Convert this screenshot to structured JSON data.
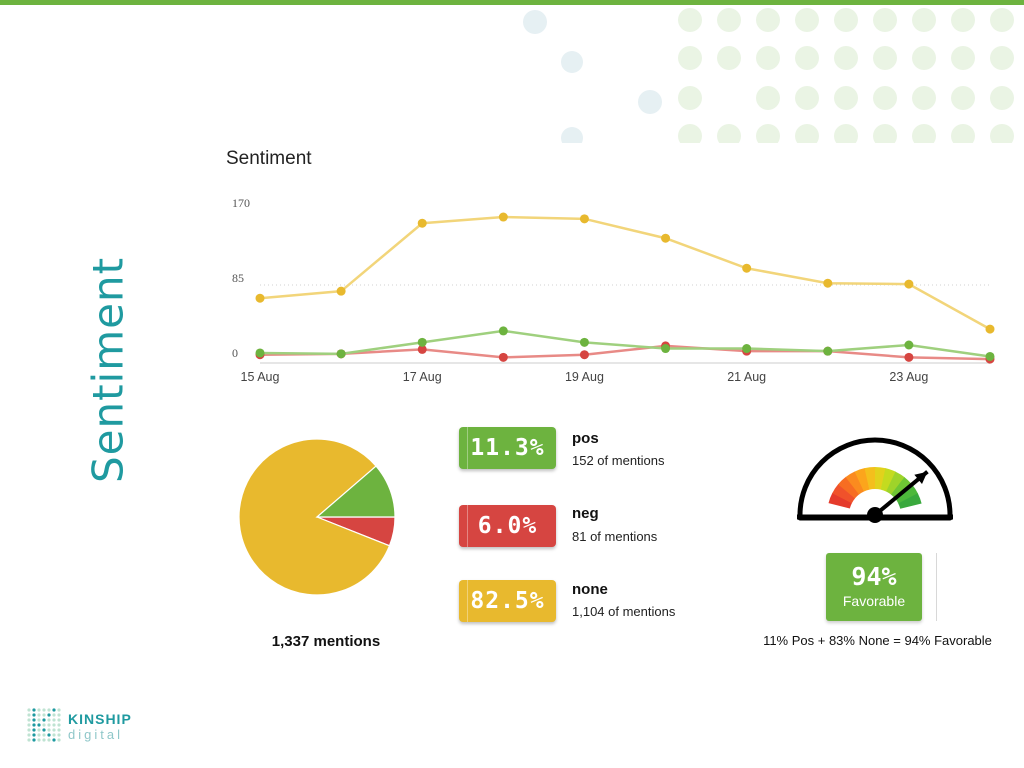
{
  "page": {
    "side_title": "Sentiment"
  },
  "brand": {
    "name": "KINSHIP",
    "sub": "digital"
  },
  "colors": {
    "none": "#e8b92e",
    "none_line": "#f2d57a",
    "pos": "#6db33f",
    "pos_line": "#9fd07e",
    "neg": "#d64541",
    "neg_line": "#e88a86",
    "teal": "#1f9aa0",
    "accent_bar": "#6db33f"
  },
  "chart_data": [
    {
      "type": "line",
      "title": "Sentiment",
      "x": [
        "15 Aug",
        "16 Aug",
        "17 Aug",
        "18 Aug",
        "19 Aug",
        "20 Aug",
        "21 Aug",
        "22 Aug",
        "23 Aug",
        "24 Aug"
      ],
      "x_tick_labels": [
        "15 Aug",
        "17 Aug",
        "19 Aug",
        "21 Aug",
        "23 Aug"
      ],
      "y_ticks": [
        0,
        85,
        170
      ],
      "ylim": [
        0,
        170
      ],
      "grid": "dotted line at 85",
      "series": [
        {
          "key": "none",
          "values": [
            70,
            78,
            155,
            162,
            160,
            138,
            104,
            87,
            86,
            35
          ]
        },
        {
          "key": "pos",
          "values": [
            8,
            7,
            20,
            33,
            20,
            13,
            13,
            10,
            17,
            4
          ]
        },
        {
          "key": "neg",
          "values": [
            6,
            7,
            12,
            3,
            6,
            16,
            10,
            10,
            3,
            1
          ]
        }
      ]
    },
    {
      "type": "pie",
      "slices": [
        {
          "key": "none",
          "value": 82.5
        },
        {
          "key": "pos",
          "value": 11.3
        },
        {
          "key": "neg",
          "value": 6.0
        }
      ],
      "total_label": "1,337 mentions"
    }
  ],
  "breakdown": [
    {
      "key": "pos",
      "pct": "11.3%",
      "label": "pos",
      "mentions": "152 of mentions"
    },
    {
      "key": "neg",
      "pct": "6.0%",
      "label": "neg",
      "mentions": "81 of mentions"
    },
    {
      "key": "none",
      "pct": "82.5%",
      "label": "none",
      "mentions": "1,104 of mentions"
    }
  ],
  "favorability": {
    "value": 0.94,
    "pct": "94%",
    "label": "Favorable",
    "formula": "11% Pos + 83% None = 94% Favorable"
  }
}
